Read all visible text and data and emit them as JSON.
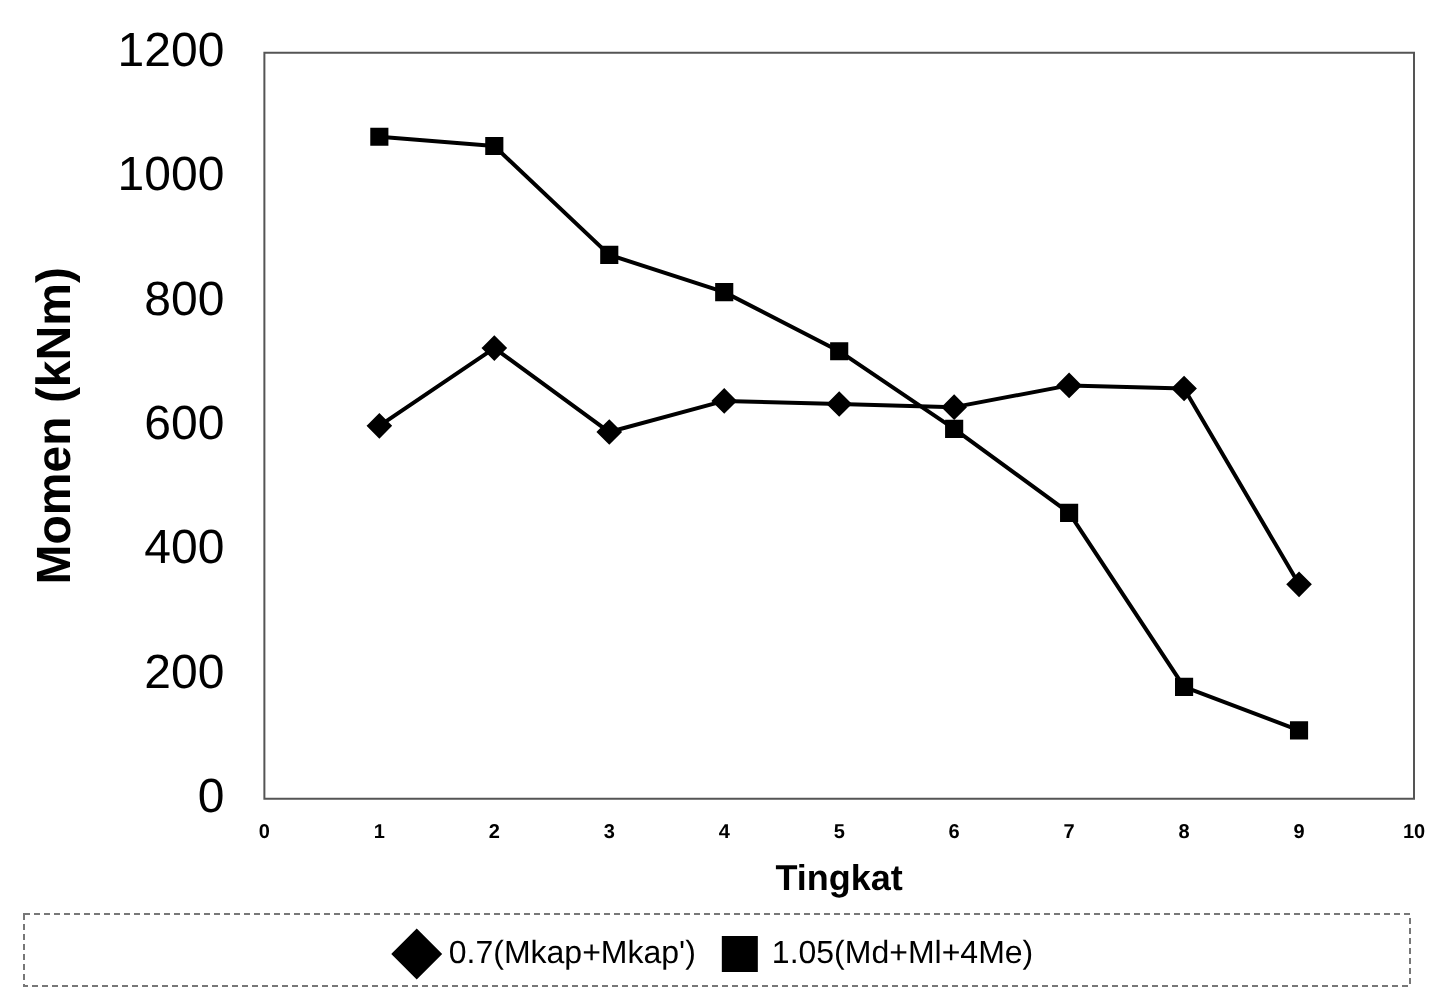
{
  "chart_data": {
    "type": "line",
    "xlabel": "Tingkat",
    "ylabel": "Momen (kNm)",
    "x": [
      1,
      2,
      3,
      4,
      5,
      6,
      7,
      8,
      9
    ],
    "series": [
      {
        "name": "0.7(Mkap+Mkap')",
        "color": "#000000",
        "marker": "diamond",
        "values": [
          600,
          725,
          590,
          640,
          635,
          630,
          665,
          660,
          345
        ]
      },
      {
        "name": "1.05(Md+Ml+4Me)",
        "color": "#000000",
        "marker": "square",
        "values": [
          1065,
          1050,
          875,
          815,
          720,
          595,
          460,
          180,
          110
        ]
      }
    ],
    "xlim": [
      0,
      10
    ],
    "xticks": [
      0,
      1,
      2,
      3,
      4,
      5,
      6,
      7,
      8,
      9,
      10
    ],
    "ylim": [
      0,
      1200
    ],
    "yticks": [
      0,
      200,
      400,
      600,
      800,
      1000,
      1200
    ],
    "grid": false,
    "legend": "bottom",
    "line_style": "solid"
  }
}
